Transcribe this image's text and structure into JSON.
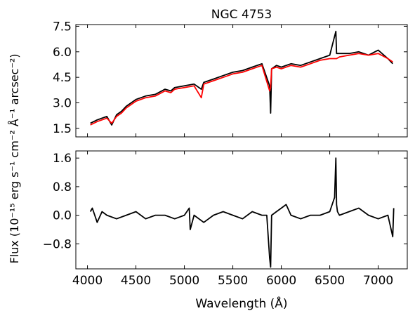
{
  "figure": {
    "title": "NGC 4753",
    "xlabel": "Wavelength (Å)",
    "ylabel": "Flux (10⁻¹⁵ erg s⁻¹ cm⁻² Å⁻¹ arcsec⁻²)"
  },
  "chart_data": [
    {
      "type": "line",
      "panel": "top",
      "title": "NGC 4753",
      "xlim": [
        3880,
        7300
      ],
      "ylim": [
        1.0,
        7.6
      ],
      "xticks": [
        4000,
        4500,
        5000,
        5500,
        6000,
        6500,
        7000
      ],
      "xticklabels": [
        "4000",
        "4500",
        "5000",
        "5500",
        "6000",
        "6500",
        "7000"
      ],
      "yticks": [
        1.5,
        3.0,
        4.5,
        6.0,
        7.5
      ],
      "yticklabels": [
        "1.5",
        "3.0",
        "4.5",
        "6.0",
        "7.5"
      ],
      "grid": false,
      "series": [
        {
          "color": "#000000",
          "x": [
            4030,
            4100,
            4200,
            4250,
            4300,
            4350,
            4400,
            4500,
            4600,
            4700,
            4800,
            4860,
            4900,
            5000,
            5100,
            5175,
            5200,
            5300,
            5400,
            5500,
            5600,
            5700,
            5800,
            5880,
            5890,
            5900,
            5950,
            6000,
            6100,
            6200,
            6300,
            6400,
            6500,
            6563,
            6570,
            6600,
            6700,
            6800,
            6900,
            7000,
            7100,
            7150
          ],
          "y": [
            1.8,
            2.0,
            2.2,
            1.7,
            2.3,
            2.5,
            2.8,
            3.2,
            3.4,
            3.5,
            3.8,
            3.7,
            3.9,
            4.0,
            4.1,
            3.8,
            4.2,
            4.4,
            4.6,
            4.8,
            4.9,
            5.1,
            5.3,
            4.0,
            2.4,
            5.0,
            5.2,
            5.1,
            5.3,
            5.2,
            5.4,
            5.6,
            5.8,
            7.2,
            5.9,
            5.9,
            5.9,
            6.0,
            5.8,
            6.1,
            5.6,
            5.3
          ]
        },
        {
          "color": "#ff0000",
          "x": [
            4030,
            4100,
            4200,
            4250,
            4300,
            4350,
            4400,
            4500,
            4600,
            4700,
            4800,
            4860,
            4900,
            5000,
            5100,
            5175,
            5200,
            5300,
            5400,
            5500,
            5600,
            5700,
            5800,
            5880,
            5890,
            5900,
            5950,
            6000,
            6100,
            6200,
            6300,
            6400,
            6500,
            6563,
            6570,
            6600,
            6700,
            6800,
            6900,
            7000,
            7100,
            7150
          ],
          "y": [
            1.7,
            1.9,
            2.1,
            1.8,
            2.2,
            2.4,
            2.7,
            3.1,
            3.3,
            3.4,
            3.7,
            3.6,
            3.8,
            3.9,
            4.0,
            3.3,
            4.1,
            4.3,
            4.5,
            4.7,
            4.8,
            5.0,
            5.2,
            3.7,
            3.9,
            5.0,
            5.1,
            5.0,
            5.2,
            5.1,
            5.3,
            5.5,
            5.6,
            5.6,
            5.6,
            5.7,
            5.8,
            5.9,
            5.8,
            5.9,
            5.6,
            5.4
          ]
        }
      ]
    },
    {
      "type": "line",
      "panel": "bottom",
      "xlim": [
        3880,
        7300
      ],
      "ylim": [
        -1.5,
        1.8
      ],
      "xticks": [
        4000,
        4500,
        5000,
        5500,
        6000,
        6500,
        7000
      ],
      "xticklabels": [
        "4000",
        "4500",
        "5000",
        "5500",
        "6000",
        "6500",
        "7000"
      ],
      "yticks": [
        -0.8,
        0.0,
        0.8,
        1.6
      ],
      "yticklabels": [
        "−0.8",
        "0.0",
        "0.8",
        "1.6"
      ],
      "grid": false,
      "series": [
        {
          "color": "#000000",
          "x": [
            4030,
            4050,
            4100,
            4150,
            4200,
            4300,
            4400,
            4500,
            4600,
            4700,
            4800,
            4900,
            5000,
            5050,
            5060,
            5100,
            5200,
            5300,
            5400,
            5500,
            5600,
            5700,
            5800,
            5850,
            5880,
            5890,
            5900,
            5950,
            6000,
            6050,
            6100,
            6200,
            6300,
            6400,
            6500,
            6550,
            6563,
            6570,
            6580,
            6600,
            6700,
            6800,
            6900,
            7000,
            7100,
            7150,
            7160
          ],
          "y": [
            0.1,
            0.2,
            -0.2,
            0.1,
            0.0,
            -0.1,
            0.0,
            0.1,
            -0.1,
            0.0,
            0.0,
            -0.1,
            0.0,
            0.2,
            -0.4,
            0.0,
            -0.2,
            0.0,
            0.1,
            0.0,
            -0.1,
            0.1,
            0.0,
            0.0,
            -1.2,
            -1.45,
            0.0,
            0.1,
            0.2,
            0.3,
            0.0,
            -0.1,
            0.0,
            0.0,
            0.1,
            0.5,
            1.6,
            0.3,
            0.1,
            0.0,
            0.1,
            0.2,
            0.0,
            -0.1,
            0.0,
            -0.6,
            0.2
          ]
        }
      ]
    }
  ]
}
